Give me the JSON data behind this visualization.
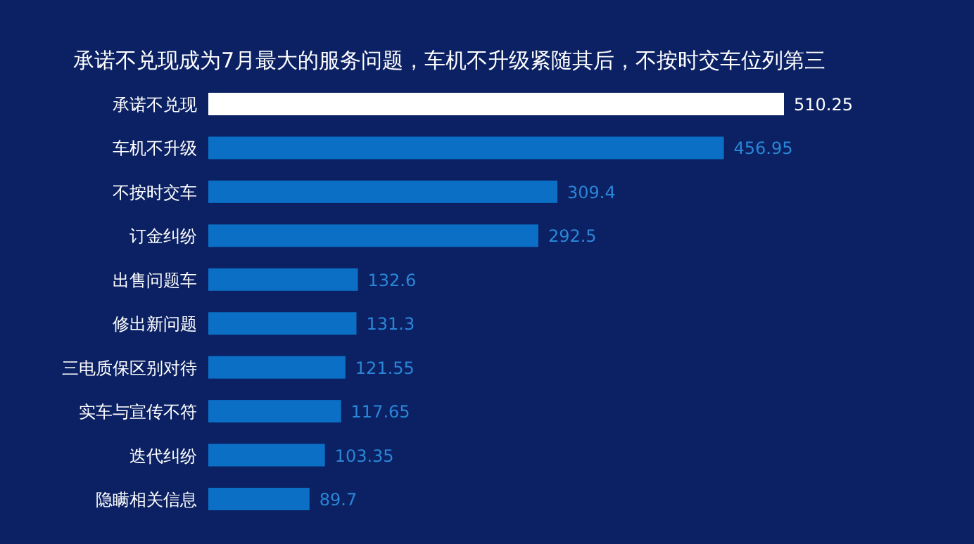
{
  "chart_data": {
    "type": "bar",
    "orientation": "horizontal",
    "title": "承诺不兑现成为7月最大的服务问题，车机不升级紧随其后，不按时交车位列第三",
    "categories": [
      "承诺不兑现",
      "车机不升级",
      "不按时交车",
      "订金纠纷",
      "出售问题车",
      "修出新问题",
      "三电质保区别对待",
      "实车与宣传不符",
      "迭代纠纷",
      "隐瞒相关信息"
    ],
    "values": [
      510.25,
      456.95,
      309.4,
      292.5,
      132.6,
      131.3,
      121.55,
      117.65,
      103.35,
      89.7
    ],
    "colors": [
      "#ffffff",
      "#0b6fc5",
      "#0b6fc5",
      "#0b6fc5",
      "#0b6fc5",
      "#0b6fc5",
      "#0b6fc5",
      "#0b6fc5",
      "#0b6fc5",
      "#0b6fc5"
    ],
    "data_labels": true
  }
}
